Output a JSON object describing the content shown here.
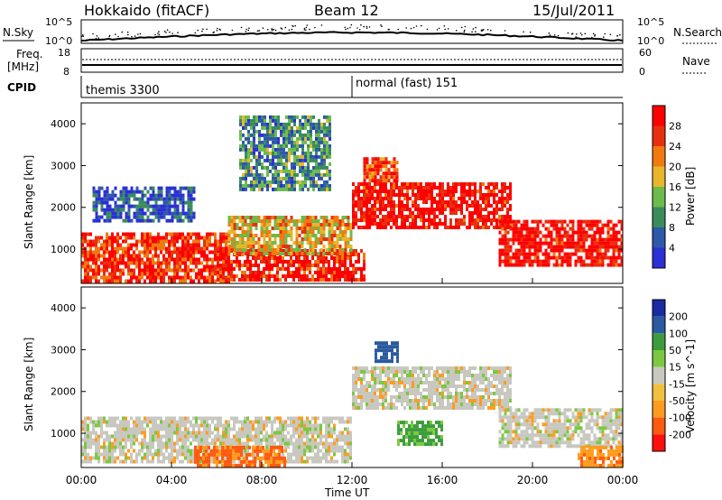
{
  "header": {
    "radar": "Hokkaido (fitACF)",
    "beam": "Beam 12",
    "date": "15/Jul/2011"
  },
  "noise_panel": {
    "left_label": "N.Sky",
    "right_label": "N.Search",
    "left_ticks": [
      "10^5",
      "10^0"
    ],
    "right_ticks": [
      "10^5",
      "10^0"
    ]
  },
  "freq_panel": {
    "left_label_1": "Freq.",
    "left_label_2": "[MHz]",
    "right_label": "Nave",
    "left_ticks": [
      "18",
      "8"
    ],
    "right_ticks": [
      "60",
      "0"
    ]
  },
  "cpid_panel": {
    "label": "CPID",
    "modes": [
      {
        "name": "themis 3300",
        "start_hour": 0
      },
      {
        "name": "normal (fast) 151",
        "start_hour": 12
      }
    ]
  },
  "colors": {
    "power": [
      "#2a2fd6",
      "#2e59a8",
      "#3a8c5a",
      "#6dbb4a",
      "#e8b62a",
      "#f07a10",
      "#e83010",
      "#ff0000"
    ],
    "velocity": [
      "#ff1010",
      "#ff5a10",
      "#ff9c20",
      "#f2c040",
      "#c8c8c0",
      "#7cc840",
      "#3c9c3c",
      "#2a5aa0",
      "#1a2aa0"
    ]
  },
  "chart_data": [
    {
      "type": "heatmap",
      "name": "power",
      "ylabel": "Slant Range [km]",
      "x_range_hours": [
        0,
        24
      ],
      "y_range_km": [
        180,
        4500
      ],
      "y_ticks": [
        1000,
        2000,
        3000,
        4000
      ],
      "colorbar": {
        "label": "Power [dB]",
        "ticks": [
          4,
          8,
          12,
          16,
          20,
          24,
          28
        ],
        "range": [
          0,
          32
        ]
      },
      "bands": [
        {
          "hours": [
            0,
            6.5
          ],
          "km": [
            250,
            1400
          ],
          "level": 0.85
        },
        {
          "hours": [
            6,
            12.5
          ],
          "km": [
            250,
            1000
          ],
          "level": 0.9
        },
        {
          "hours": [
            6.5,
            12
          ],
          "km": [
            900,
            1800
          ],
          "level": 0.6
        },
        {
          "hours": [
            12,
            19
          ],
          "km": [
            1500,
            2600
          ],
          "level": 0.95
        },
        {
          "hours": [
            18.5,
            24
          ],
          "km": [
            600,
            1700
          ],
          "level": 0.95
        },
        {
          "hours": [
            12.5,
            14
          ],
          "km": [
            2600,
            3200
          ],
          "level": 0.8
        },
        {
          "hours": [
            0.5,
            5
          ],
          "km": [
            1700,
            2500
          ],
          "level": 0.15
        },
        {
          "hours": [
            7,
            11
          ],
          "km": [
            2400,
            4200
          ],
          "level": 0.3
        }
      ]
    },
    {
      "type": "heatmap",
      "name": "velocity",
      "ylabel": "Slant Range [km]",
      "xlabel": "Time UT",
      "x_range_hours": [
        0,
        24
      ],
      "y_range_km": [
        180,
        4500
      ],
      "y_ticks": [
        1000,
        2000,
        3000,
        4000
      ],
      "x_ticks": [
        "00:00",
        "04:00",
        "08:00",
        "12:00",
        "16:00",
        "20:00",
        "00:00"
      ],
      "colorbar": {
        "label": "Velocity [m s^-1]",
        "ticks": [
          200,
          100,
          50,
          15,
          -15,
          -50,
          -100,
          -200
        ]
      },
      "bands": [
        {
          "hours": [
            0,
            12
          ],
          "km": [
            300,
            1400
          ],
          "vel": 0
        },
        {
          "hours": [
            12,
            19
          ],
          "km": [
            1600,
            2600
          ],
          "vel": 0
        },
        {
          "hours": [
            18.5,
            24
          ],
          "km": [
            700,
            1600
          ],
          "vel": 0
        },
        {
          "hours": [
            5,
            9
          ],
          "km": [
            250,
            700
          ],
          "vel": -60
        },
        {
          "hours": [
            13,
            14
          ],
          "km": [
            2700,
            3200
          ],
          "vel": 120
        },
        {
          "hours": [
            14,
            16
          ],
          "km": [
            700,
            1300
          ],
          "vel": 60
        },
        {
          "hours": [
            22,
            24
          ],
          "km": [
            250,
            700
          ],
          "vel": -40
        }
      ]
    }
  ]
}
